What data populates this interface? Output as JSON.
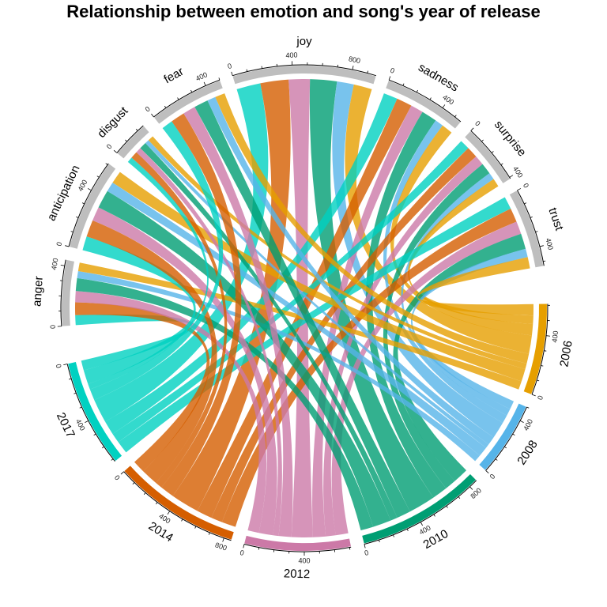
{
  "chart_data": {
    "type": "chord",
    "title": "Relationship between emotion and song's year of release",
    "emotions": [
      "joy",
      "sadness",
      "surprise",
      "trust",
      "anger",
      "anticipation",
      "disgust",
      "fear"
    ],
    "years": [
      "2006",
      "2008",
      "2010",
      "2012",
      "2014",
      "2017"
    ],
    "matrix_rows": "emotions",
    "matrix_cols": "years",
    "matrix": [
      [
        130,
        120,
        190,
        150,
        200,
        170
      ],
      [
        80,
        60,
        110,
        90,
        110,
        100
      ],
      [
        60,
        50,
        80,
        70,
        80,
        70
      ],
      [
        80,
        60,
        110,
        90,
        100,
        90
      ],
      [
        60,
        50,
        90,
        80,
        90,
        70
      ],
      [
        90,
        70,
        130,
        100,
        120,
        100
      ],
      [
        40,
        30,
        50,
        40,
        50,
        40
      ],
      [
        70,
        60,
        100,
        90,
        100,
        80
      ]
    ],
    "colors": {
      "2006": "#E69F00",
      "2008": "#56B4E9",
      "2010": "#009E73",
      "2012": "#CC79A7",
      "2014": "#D55E00",
      "2017": "#00D1C1",
      "emotion": "#BEBEBE"
    },
    "tick_major": 400,
    "tick_minor": 100
  }
}
